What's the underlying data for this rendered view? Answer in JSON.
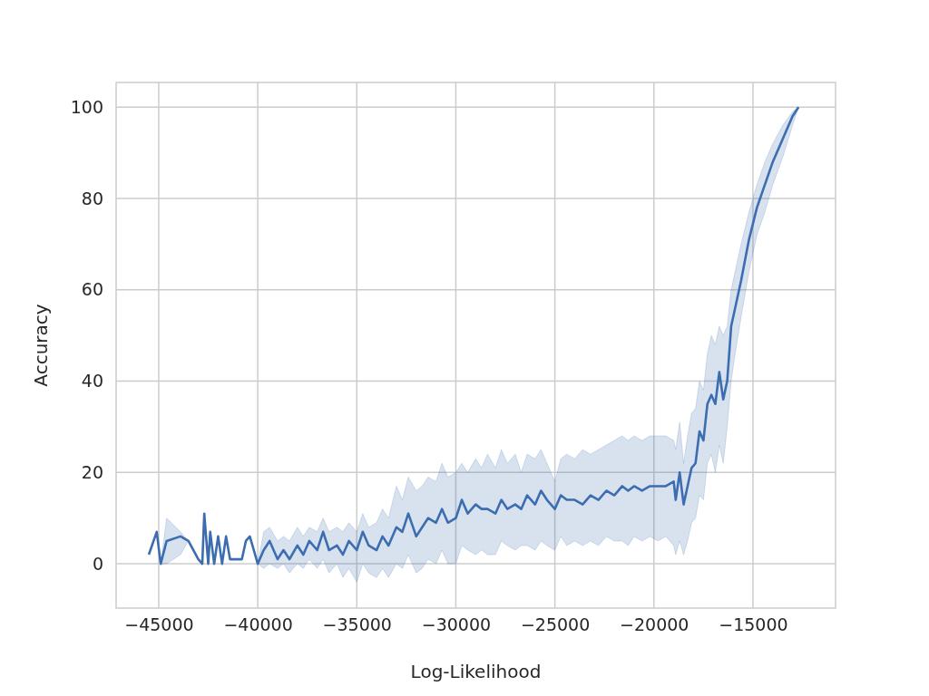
{
  "chart_data": {
    "type": "line",
    "xlabel": "Log-Likelihood",
    "ylabel": "Accuracy",
    "xlim": [
      -47150,
      -10830
    ],
    "ylim": [
      -9.7,
      105.4
    ],
    "xticks": [
      {
        "value": -45000,
        "label": "−45000"
      },
      {
        "value": -40000,
        "label": "−40000"
      },
      {
        "value": -35000,
        "label": "−35000"
      },
      {
        "value": -30000,
        "label": "−30000"
      },
      {
        "value": -25000,
        "label": "−25000"
      },
      {
        "value": -20000,
        "label": "−20000"
      },
      {
        "value": -15000,
        "label": "−15000"
      }
    ],
    "yticks": [
      0,
      20,
      40,
      60,
      80,
      100
    ],
    "grid": true,
    "series": [
      {
        "color": "#3c6db0",
        "x": [
          -45500,
          -45100,
          -44900,
          -44600,
          -43900,
          -43500,
          -43000,
          -42800,
          -42700,
          -42500,
          -42400,
          -42200,
          -42000,
          -41800,
          -41600,
          -41400,
          -41200,
          -40800,
          -40600,
          -40400,
          -40000,
          -39700,
          -39400,
          -39000,
          -38700,
          -38400,
          -38000,
          -37700,
          -37400,
          -37000,
          -36700,
          -36400,
          -36000,
          -35700,
          -35400,
          -35000,
          -34700,
          -34400,
          -34000,
          -33700,
          -33400,
          -33000,
          -32700,
          -32400,
          -32000,
          -31700,
          -31400,
          -31000,
          -30700,
          -30400,
          -30000,
          -29700,
          -29400,
          -29000,
          -28700,
          -28400,
          -28000,
          -27700,
          -27400,
          -27000,
          -26700,
          -26400,
          -26000,
          -25700,
          -25400,
          -25000,
          -24700,
          -24400,
          -24000,
          -23600,
          -23200,
          -22800,
          -22400,
          -22000,
          -21600,
          -21300,
          -21000,
          -20600,
          -20200,
          -19800,
          -19400,
          -19000,
          -18900,
          -18700,
          -18500,
          -18300,
          -18100,
          -17900,
          -17700,
          -17500,
          -17300,
          -17100,
          -16900,
          -16700,
          -16500,
          -16300,
          -16100,
          -15900,
          -15600,
          -15200,
          -14800,
          -14400,
          -14000,
          -13500,
          -13000,
          -12700
        ],
        "values": [
          2,
          7,
          0,
          5,
          6,
          5,
          1,
          0,
          11,
          0,
          7,
          0,
          6,
          0,
          6,
          1,
          1,
          1,
          5,
          6,
          0,
          3,
          5,
          1,
          3,
          1,
          4,
          2,
          5,
          3,
          7,
          3,
          4,
          2,
          5,
          3,
          7,
          4,
          3,
          6,
          4,
          8,
          7,
          11,
          6,
          8,
          10,
          9,
          12,
          9,
          10,
          14,
          11,
          13,
          12,
          12,
          11,
          14,
          12,
          13,
          12,
          15,
          13,
          16,
          14,
          12,
          15,
          14,
          14,
          13,
          15,
          14,
          16,
          15,
          17,
          16,
          17,
          16,
          17,
          17,
          17,
          18,
          14,
          20,
          13,
          17,
          21,
          22,
          29,
          27,
          35,
          37,
          35,
          42,
          36,
          40,
          52,
          56,
          62,
          71,
          78,
          83,
          88,
          93,
          98,
          100
        ],
        "lower": [
          2,
          7,
          0,
          0,
          2,
          5,
          1,
          0,
          11,
          0,
          7,
          0,
          6,
          0,
          6,
          1,
          1,
          1,
          5,
          6,
          0,
          -1,
          0,
          -1,
          0,
          -2,
          0,
          -1,
          1,
          -1,
          1,
          -2,
          0,
          -3,
          -1,
          -4,
          0,
          -2,
          -3,
          -1,
          -3,
          0,
          -1,
          2,
          -2,
          -1,
          1,
          0,
          3,
          0,
          0,
          4,
          3,
          2,
          3,
          2,
          2,
          5,
          4,
          3,
          4,
          4,
          3,
          5,
          4,
          3,
          6,
          4,
          5,
          4,
          5,
          4,
          6,
          5,
          5,
          4,
          6,
          5,
          6,
          5,
          6,
          4,
          2,
          5,
          2,
          5,
          9,
          10,
          15,
          14,
          22,
          24,
          20,
          26,
          22,
          30,
          40,
          46,
          54,
          64,
          72,
          77,
          83,
          89,
          96,
          100
        ],
        "upper": [
          2,
          7,
          0,
          10,
          7,
          5,
          1,
          0,
          11,
          0,
          7,
          0,
          6,
          0,
          6,
          1,
          1,
          1,
          5,
          6,
          0,
          7,
          8,
          5,
          6,
          5,
          8,
          6,
          8,
          7,
          10,
          7,
          8,
          7,
          9,
          7,
          11,
          8,
          9,
          12,
          10,
          17,
          14,
          19,
          16,
          17,
          19,
          18,
          22,
          19,
          20,
          22,
          20,
          23,
          21,
          24,
          21,
          25,
          22,
          24,
          20,
          24,
          23,
          25,
          22,
          18,
          23,
          24,
          23,
          25,
          24,
          25,
          26,
          27,
          28,
          27,
          28,
          27,
          28,
          28,
          28,
          27,
          25,
          31,
          22,
          28,
          33,
          34,
          40,
          38,
          46,
          50,
          48,
          52,
          50,
          52,
          60,
          64,
          70,
          77,
          83,
          88,
          92,
          96,
          99,
          100
        ]
      }
    ]
  }
}
